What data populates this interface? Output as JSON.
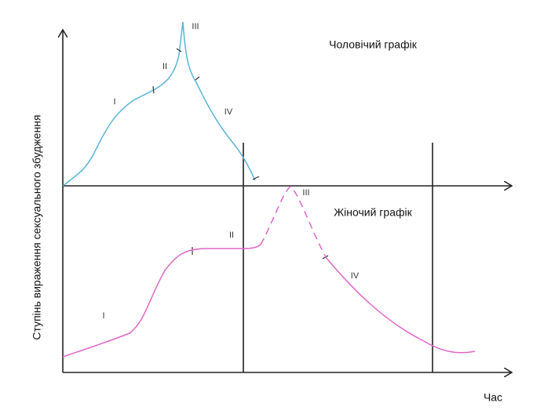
{
  "y_axis_label": "Ступінь вираження сексуального збудження",
  "x_axis_label": "Час",
  "male": {
    "title": "Чоловічий графік",
    "phases": [
      "I",
      "II",
      "III",
      "IV"
    ]
  },
  "female": {
    "title": "Жіночий графік",
    "phases": [
      "I",
      "II",
      "III",
      "IV"
    ]
  }
}
